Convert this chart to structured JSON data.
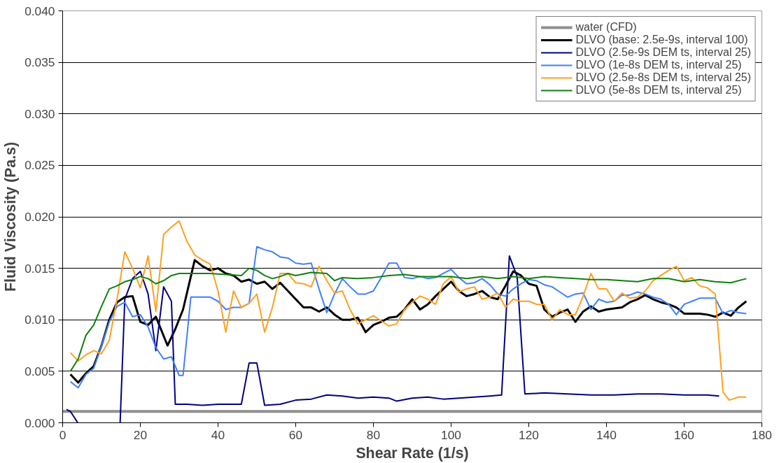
{
  "chart_data": {
    "type": "line",
    "xlabel": "Shear Rate (1/s)",
    "ylabel": "Fluid Viscosity (Pa.s)",
    "xlim": [
      0,
      180
    ],
    "xticks": [
      0,
      20,
      40,
      60,
      80,
      100,
      120,
      140,
      160,
      180
    ],
    "ylim": [
      0,
      0.04
    ],
    "yticks": [
      {
        "value": 0,
        "label": "0.000"
      },
      {
        "value": 0.005,
        "label": "0.005"
      },
      {
        "value": 0.01,
        "label": "0.010"
      },
      {
        "value": 0.015,
        "label": "0.015"
      },
      {
        "value": 0.02,
        "label": "0.020"
      },
      {
        "value": 0.025,
        "label": "0.025"
      },
      {
        "value": 0.03,
        "label": "0.030"
      },
      {
        "value": 0.035,
        "label": "0.035"
      },
      {
        "value": 0.04,
        "label": "0.040"
      }
    ],
    "grid": "y",
    "legend": "top right",
    "marker": "none",
    "line_style": "solid",
    "series": [
      {
        "name": "water (CFD)",
        "color": "#909090",
        "x": [
          0,
          180
        ],
        "values": [
          0.0011,
          0.0011
        ]
      },
      {
        "name": "DLVO (base: 2.5e-9s, interval 100)",
        "color": "#000000",
        "x": [
          2,
          4,
          6,
          8,
          10,
          12,
          14,
          16,
          18,
          20,
          22,
          24,
          27,
          29,
          31,
          34,
          36,
          38,
          40,
          42,
          44,
          46,
          48,
          50,
          52,
          54,
          56,
          58,
          60,
          62,
          64,
          66,
          68,
          70,
          72,
          74,
          76,
          78,
          80,
          82,
          84,
          86,
          88,
          90,
          92,
          94,
          96,
          98,
          100,
          102,
          104,
          106,
          108,
          110,
          112,
          114,
          116,
          118,
          120,
          122,
          124,
          126,
          128,
          130,
          132,
          134,
          136,
          138,
          140,
          142,
          144,
          146,
          148,
          150,
          152,
          154,
          156,
          158,
          160,
          162,
          164,
          166,
          168,
          170,
          172,
          174,
          176
        ],
        "values": [
          0.0047,
          0.0039,
          0.0048,
          0.0055,
          0.0075,
          0.01,
          0.0117,
          0.0122,
          0.0123,
          0.0098,
          0.0095,
          0.0103,
          0.0075,
          0.0091,
          0.011,
          0.0158,
          0.0152,
          0.0148,
          0.015,
          0.0145,
          0.0143,
          0.0137,
          0.0139,
          0.0135,
          0.0137,
          0.013,
          0.0136,
          0.0128,
          0.012,
          0.0112,
          0.0112,
          0.0108,
          0.0112,
          0.0105,
          0.01,
          0.01,
          0.0102,
          0.0088,
          0.0095,
          0.0098,
          0.0102,
          0.0103,
          0.011,
          0.012,
          0.011,
          0.0115,
          0.0123,
          0.013,
          0.0137,
          0.0128,
          0.0123,
          0.0125,
          0.0128,
          0.0122,
          0.012,
          0.0133,
          0.0147,
          0.0143,
          0.0135,
          0.0133,
          0.011,
          0.0103,
          0.0107,
          0.011,
          0.0098,
          0.0108,
          0.0113,
          0.0108,
          0.011,
          0.0111,
          0.0112,
          0.0117,
          0.012,
          0.0124,
          0.012,
          0.0117,
          0.0115,
          0.0112,
          0.0106,
          0.0106,
          0.0106,
          0.0105,
          0.0103,
          0.0107,
          0.0104,
          0.0112,
          0.0118
        ]
      },
      {
        "name": "DLVO (2.5e-9s DEM ts, interval 25)",
        "color": "#000080",
        "x": [
          1,
          2,
          3.9,
          10,
          14.8,
          16,
          18,
          20,
          22,
          24,
          26,
          28,
          29,
          32,
          36,
          40,
          46,
          48,
          50,
          52,
          56,
          60,
          64,
          68,
          72,
          76,
          80,
          84,
          86,
          90,
          94,
          98,
          102,
          106,
          110,
          113,
          115,
          117,
          119,
          124,
          130,
          136,
          142,
          148,
          154,
          160,
          166,
          169
        ],
        "values": [
          0.0013,
          0.0011,
          0,
          null,
          0,
          0.012,
          0.014,
          0.0147,
          0.0125,
          0.007,
          0.0132,
          0.0118,
          0.0018,
          0.0018,
          0.0017,
          0.0018,
          0.0018,
          0.0058,
          0.0058,
          0.0017,
          0.0018,
          0.0022,
          0.0023,
          0.0027,
          0.0026,
          0.0024,
          0.0025,
          0.0024,
          0.0021,
          0.0024,
          0.0025,
          0.0023,
          0.0024,
          0.0025,
          0.0026,
          0.0027,
          0.0162,
          0.0142,
          0.0028,
          0.0029,
          0.0028,
          0.0027,
          0.0027,
          0.0028,
          0.0028,
          0.0027,
          0.0027,
          0.0026
        ]
      },
      {
        "name": "DLVO (1e-8s DEM ts, interval 25)",
        "color": "#3f7fff",
        "x": [
          2,
          4,
          6,
          8,
          10,
          12,
          14,
          16,
          18,
          20,
          22,
          24,
          26,
          28,
          30,
          31,
          33,
          38,
          40,
          42,
          44,
          46,
          48,
          50,
          52,
          54,
          56,
          58,
          60,
          62,
          64,
          66,
          68,
          70,
          72,
          74,
          76,
          78,
          80,
          82,
          84,
          86,
          88,
          90,
          92,
          94,
          96,
          98,
          100,
          102,
          104,
          106,
          108,
          110,
          112,
          114,
          116,
          118,
          120,
          122,
          124,
          126,
          128,
          130,
          132,
          134,
          136,
          138,
          140,
          142,
          144,
          146,
          148,
          150,
          152,
          154,
          156,
          158,
          160,
          162,
          164,
          166,
          168,
          170,
          172,
          174,
          176
        ],
        "values": [
          0.004,
          0.0034,
          0.0047,
          0.0053,
          0.0075,
          0.0098,
          0.0113,
          0.0117,
          0.0103,
          0.0105,
          0.0093,
          0.0073,
          0.0062,
          0.0064,
          0.0046,
          0.0046,
          0.0122,
          0.0122,
          0.0118,
          0.011,
          0.0112,
          0.0112,
          0.0116,
          0.0171,
          0.0168,
          0.0166,
          0.0161,
          0.016,
          0.0155,
          0.0154,
          0.0155,
          0.013,
          0.0107,
          0.0125,
          0.014,
          0.0132,
          0.0125,
          0.0125,
          0.0128,
          0.0141,
          0.0155,
          0.0155,
          0.0141,
          0.014,
          0.0142,
          0.014,
          0.0141,
          0.0145,
          0.0149,
          0.0141,
          0.0135,
          0.0136,
          0.014,
          0.0134,
          0.0125,
          0.0123,
          0.013,
          0.0135,
          0.0139,
          0.0138,
          0.0134,
          0.0132,
          0.0127,
          0.0122,
          0.0125,
          0.0126,
          0.011,
          0.012,
          0.0117,
          0.0118,
          0.0124,
          0.0124,
          0.0127,
          0.0125,
          0.0122,
          0.012,
          0.0115,
          0.0105,
          0.0115,
          0.0118,
          0.0121,
          0.0121,
          0.0121,
          0.0106,
          0.0109,
          0.0107,
          0.0106
        ]
      },
      {
        "name": "DLVO (2.5e-8s DEM ts, interval 25)",
        "color": "#ffa020",
        "x": [
          2,
          4,
          6,
          8,
          10,
          12,
          14,
          16,
          18,
          20,
          22,
          24,
          26,
          28,
          30,
          32,
          34,
          36,
          38,
          40,
          42,
          44,
          46,
          48,
          50,
          52,
          54,
          56,
          58,
          60,
          62,
          64,
          66,
          68,
          70,
          72,
          74,
          76,
          78,
          80,
          82,
          84,
          86,
          88,
          90,
          92,
          94,
          96,
          98,
          100,
          102,
          104,
          106,
          108,
          110,
          112,
          114,
          116,
          118,
          120,
          122,
          124,
          126,
          128,
          130,
          132,
          134,
          136,
          138,
          140,
          142,
          144,
          146,
          148,
          150,
          152,
          154,
          156,
          158,
          160,
          162,
          164,
          166,
          168,
          170,
          171.6,
          174,
          176
        ],
        "values": [
          0.0068,
          0.006,
          0.0066,
          0.007,
          0.0067,
          0.008,
          0.012,
          0.0166,
          0.015,
          0.0131,
          0.0162,
          0.0108,
          0.0183,
          0.019,
          0.0196,
          0.0176,
          0.0163,
          0.0158,
          0.0154,
          0.0128,
          0.0088,
          0.0128,
          0.0112,
          0.0116,
          0.0125,
          0.0088,
          0.0112,
          0.0145,
          0.0145,
          0.0136,
          0.0135,
          0.0132,
          0.0152,
          0.0138,
          0.0126,
          0.0128,
          0.011,
          0.0096,
          0.01,
          0.0104,
          0.0099,
          0.0094,
          0.0096,
          0.011,
          0.0117,
          0.0123,
          0.012,
          0.0115,
          0.0135,
          0.0142,
          0.0127,
          0.013,
          0.0132,
          0.012,
          0.0122,
          0.0126,
          0.0112,
          0.012,
          0.0118,
          0.0118,
          0.0115,
          0.0115,
          0.01,
          0.011,
          0.0105,
          0.0105,
          0.0123,
          0.0145,
          0.013,
          0.013,
          0.0118,
          0.0126,
          0.0121,
          0.0122,
          0.0128,
          0.0138,
          0.0143,
          0.0148,
          0.0152,
          0.0138,
          0.0141,
          0.0133,
          0.0131,
          0.0125,
          0.003,
          0.0022,
          0.0025,
          0.0025
        ]
      },
      {
        "name": "DLVO (5e-8s DEM ts, interval 25)",
        "color": "#108010",
        "x": [
          2,
          4,
          6,
          8,
          10,
          12,
          14,
          16,
          18,
          20,
          22,
          24,
          26,
          28,
          30,
          34,
          38,
          42,
          46,
          48,
          50,
          52,
          54,
          56,
          58,
          60,
          64,
          68,
          70,
          72,
          76,
          80,
          84,
          88,
          92,
          96,
          100,
          104,
          108,
          112,
          116,
          120,
          124,
          128,
          132,
          136,
          140,
          144,
          148,
          152,
          156,
          160,
          164,
          168,
          172,
          176
        ],
        "values": [
          0.005,
          0.0062,
          0.0085,
          0.0095,
          0.0113,
          0.013,
          0.0133,
          0.0137,
          0.0139,
          0.0142,
          0.014,
          0.0135,
          0.0138,
          0.0143,
          0.0145,
          0.0145,
          0.0145,
          0.0144,
          0.0143,
          0.015,
          0.0148,
          0.0143,
          0.014,
          0.0142,
          0.0145,
          0.0143,
          0.0146,
          0.0145,
          0.0138,
          0.0141,
          0.014,
          0.0141,
          0.0143,
          0.0144,
          0.0142,
          0.0142,
          0.0142,
          0.014,
          0.0142,
          0.014,
          0.0142,
          0.014,
          0.0142,
          0.0141,
          0.014,
          0.0139,
          0.0139,
          0.0138,
          0.0137,
          0.014,
          0.014,
          0.0137,
          0.0139,
          0.0137,
          0.0136,
          0.014
        ]
      }
    ]
  }
}
